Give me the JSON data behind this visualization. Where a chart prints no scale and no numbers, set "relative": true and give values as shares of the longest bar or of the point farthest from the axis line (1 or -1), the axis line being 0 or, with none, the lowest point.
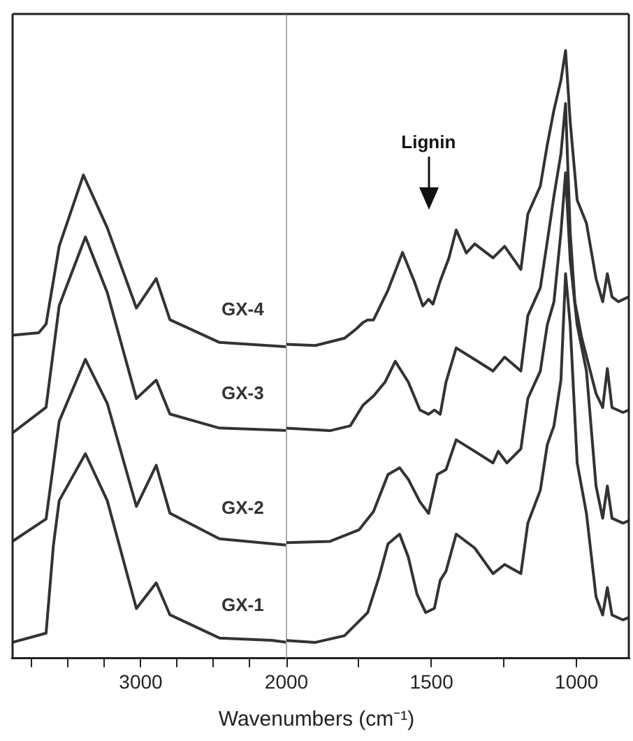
{
  "chart_data": [
    {
      "type": "line",
      "xlabel": "Wavenumbers (cm⁻¹)",
      "relative": true,
      "xlim": [
        3880,
        2000
      ],
      "xticks": [
        {
          "value": 3750,
          "label": null
        },
        {
          "value": 3500,
          "label": null
        },
        {
          "value": 3250,
          "label": null
        },
        3000,
        {
          "value": 2750,
          "label": null
        },
        {
          "value": 2500,
          "label": null
        },
        {
          "value": 2250,
          "label": null
        },
        2000
      ],
      "marker": "none",
      "line_style": "solid",
      "grid": false,
      "legend": false,
      "series": [
        {
          "name": "GX-1",
          "color": "#333333",
          "x": [
            3880,
            3650,
            3600,
            3560,
            3380,
            3230,
            3030,
            2894,
            2800,
            2460,
            2100,
            2000
          ],
          "values": [
            0.034,
            0.053,
            0.234,
            0.327,
            0.424,
            0.327,
            0.104,
            0.157,
            0.091,
            0.043,
            0.038,
            0.034
          ]
        },
        {
          "name": "GX-2",
          "color": "#333333",
          "x": [
            3880,
            3650,
            3560,
            3380,
            3230,
            3030,
            2894,
            2800,
            2460,
            2000
          ],
          "values": [
            0.243,
            0.289,
            0.491,
            0.619,
            0.528,
            0.315,
            0.4,
            0.301,
            0.248,
            0.235
          ]
        },
        {
          "name": "GX-3",
          "color": "#333333",
          "x": [
            3880,
            3650,
            3560,
            3380,
            3230,
            3030,
            2894,
            2800,
            2460,
            2000
          ],
          "values": [
            0.467,
            0.52,
            0.73,
            0.872,
            0.757,
            0.538,
            0.576,
            0.506,
            0.477,
            0.472
          ]
        },
        {
          "name": "GX-4",
          "color": "#333333",
          "x": [
            3880,
            3700,
            3650,
            3560,
            3394,
            3230,
            3030,
            2894,
            2800,
            2460,
            2000
          ],
          "values": [
            0.669,
            0.674,
            0.692,
            0.853,
            1,
            0.891,
            0.725,
            0.786,
            0.701,
            0.654,
            0.645
          ]
        }
      ]
    },
    {
      "type": "line",
      "relative": true,
      "xlim": [
        2000,
        820
      ],
      "xticks": [
        {
          "value": 1750,
          "label": null
        },
        1500,
        {
          "value": 1250,
          "label": null
        },
        1000
      ],
      "marker": "none",
      "line_style": "solid",
      "grid": false,
      "legend": false,
      "annotations": [
        "Lignin"
      ],
      "series": [
        {
          "color": "#333333",
          "x": [
            2000,
            1900,
            1800,
            1720,
            1680,
            1650,
            1610,
            1580,
            1550,
            1520,
            1490,
            1470,
            1450,
            1415,
            1351,
            1288,
            1248,
            1192,
            1168,
            1125,
            1101,
            1078,
            1054,
            1038,
            1022,
            998,
            966,
            933,
            910,
            894,
            878,
            840,
            820
          ],
          "values": [
            0.03,
            0.027,
            0.038,
            0.076,
            0.136,
            0.189,
            0.205,
            0.167,
            0.106,
            0.076,
            0.083,
            0.129,
            0.144,
            0.205,
            0.182,
            0.14,
            0.155,
            0.14,
            0.223,
            0.277,
            0.352,
            0.383,
            0.458,
            0.633,
            0.549,
            0.322,
            0.239,
            0.102,
            0.072,
            0.117,
            0.072,
            0.064,
            0.068
          ]
        },
        {
          "color": "#333333",
          "x": [
            2000,
            1850,
            1750,
            1700,
            1650,
            1610,
            1580,
            1540,
            1510,
            1480,
            1450,
            1415,
            1351,
            1288,
            1270,
            1240,
            1192,
            1168,
            1125,
            1101,
            1078,
            1054,
            1038,
            1022,
            998,
            966,
            933,
            910,
            894,
            878,
            840,
            820
          ],
          "values": [
            0.191,
            0.193,
            0.212,
            0.242,
            0.303,
            0.314,
            0.295,
            0.258,
            0.239,
            0.303,
            0.311,
            0.36,
            0.341,
            0.322,
            0.341,
            0.322,
            0.345,
            0.428,
            0.473,
            0.549,
            0.587,
            0.701,
            0.799,
            0.655,
            0.549,
            0.473,
            0.284,
            0.231,
            0.284,
            0.231,
            0.223,
            0.227
          ]
        },
        {
          "color": "#333333",
          "x": [
            2000,
            1850,
            1780,
            1736,
            1700,
            1660,
            1625,
            1580,
            1540,
            1510,
            1490,
            1470,
            1450,
            1415,
            1351,
            1288,
            1248,
            1192,
            1168,
            1125,
            1101,
            1078,
            1054,
            1038,
            1022,
            1006,
            982,
            933,
            910,
            894,
            878,
            840,
            820
          ],
          "values": [
            0.379,
            0.375,
            0.383,
            0.417,
            0.432,
            0.455,
            0.489,
            0.455,
            0.409,
            0.402,
            0.409,
            0.402,
            0.455,
            0.511,
            0.492,
            0.473,
            0.496,
            0.473,
            0.564,
            0.61,
            0.686,
            0.761,
            0.83,
            0.913,
            0.701,
            0.587,
            0.527,
            0.436,
            0.413,
            0.477,
            0.413,
            0.405,
            0.409
          ]
        },
        {
          "color": "#333333",
          "x": [
            2000,
            1900,
            1800,
            1760,
            1736,
            1720,
            1700,
            1650,
            1600,
            1560,
            1530,
            1510,
            1495,
            1470,
            1440,
            1415,
            1380,
            1351,
            1288,
            1248,
            1192,
            1168,
            1125,
            1101,
            1078,
            1054,
            1038,
            1022,
            998,
            966,
            933,
            910,
            894,
            878,
            856,
            820
          ],
          "values": [
            0.517,
            0.515,
            0.527,
            0.542,
            0.553,
            0.557,
            0.557,
            0.606,
            0.668,
            0.621,
            0.58,
            0.591,
            0.583,
            0.621,
            0.659,
            0.705,
            0.667,
            0.682,
            0.659,
            0.678,
            0.64,
            0.731,
            0.777,
            0.845,
            0.902,
            0.951,
            1,
            0.883,
            0.754,
            0.716,
            0.625,
            0.587,
            0.633,
            0.595,
            0.587,
            0.595
          ]
        }
      ]
    }
  ]
}
